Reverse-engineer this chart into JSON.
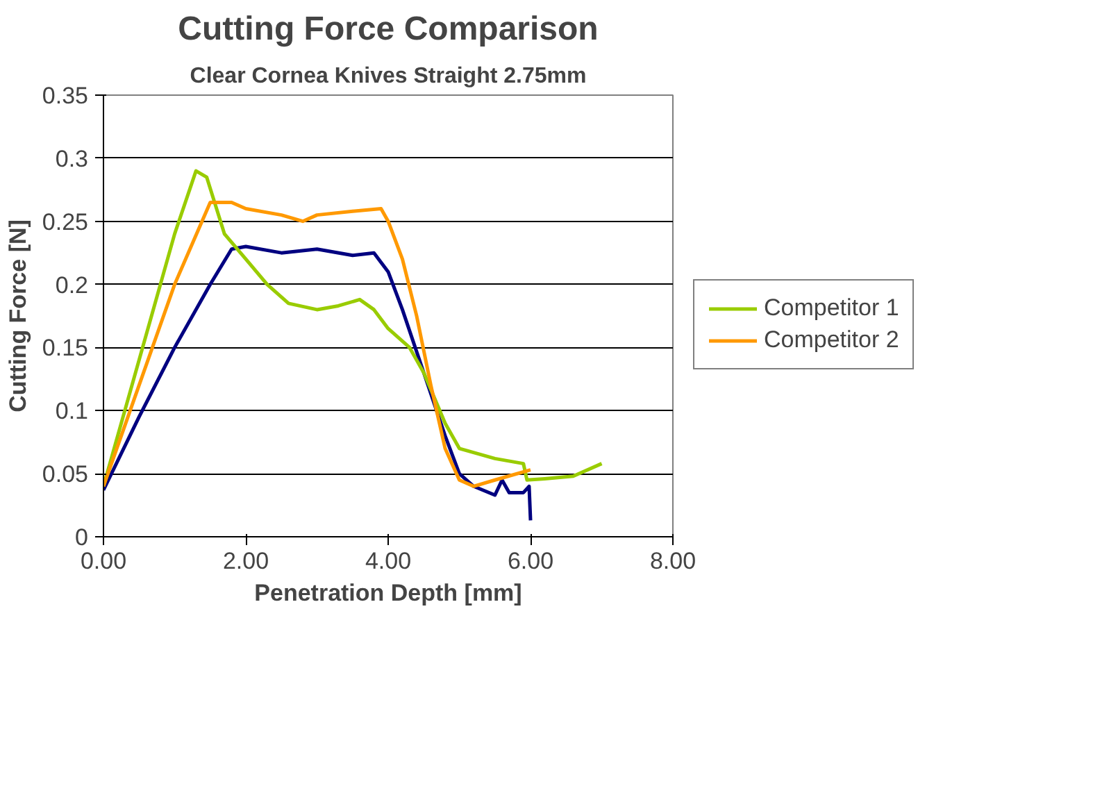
{
  "chart_data": {
    "type": "line",
    "title": "Cutting Force Comparison",
    "subtitle": "Clear Cornea Knives Straight 2.75mm",
    "xlabel": "Penetration Depth [mm]",
    "ylabel": "Cutting Force [N]",
    "xlim": [
      0,
      8
    ],
    "xticks": [
      {
        "value": 0,
        "label": "0.00"
      },
      {
        "value": 2,
        "label": "2.00"
      },
      {
        "value": 4,
        "label": "4.00"
      },
      {
        "value": 6,
        "label": "6.00"
      },
      {
        "value": 8,
        "label": "8.00"
      }
    ],
    "ylim": [
      0,
      0.35
    ],
    "yticks": [
      0,
      0.05,
      0.1,
      0.15,
      0.2,
      0.25,
      0.3,
      0.35
    ],
    "grid": "y",
    "legend": "right",
    "marker": "none",
    "line_style": "solid",
    "series": [
      {
        "color": "#000080",
        "x": [
          0,
          0.5,
          1.0,
          1.5,
          1.8,
          2.0,
          2.5,
          3.0,
          3.5,
          3.8,
          4.0,
          4.2,
          4.5,
          4.8,
          5.0,
          5.2,
          5.5,
          5.6,
          5.7,
          5.9,
          5.98,
          6.0
        ],
        "values": [
          0.037,
          0.095,
          0.15,
          0.2,
          0.228,
          0.23,
          0.225,
          0.228,
          0.223,
          0.225,
          0.21,
          0.18,
          0.13,
          0.08,
          0.05,
          0.04,
          0.033,
          0.045,
          0.035,
          0.035,
          0.04,
          0.013
        ]
      },
      {
        "name": "Competitor 1",
        "color": "#99cc00",
        "x": [
          0,
          0.5,
          1.0,
          1.3,
          1.45,
          1.7,
          2.0,
          2.3,
          2.6,
          3.0,
          3.3,
          3.6,
          3.8,
          4.0,
          4.3,
          4.5,
          4.8,
          5.0,
          5.5,
          5.9,
          5.95,
          6.2,
          6.6,
          7.0
        ],
        "values": [
          0.04,
          0.14,
          0.24,
          0.29,
          0.285,
          0.24,
          0.22,
          0.2,
          0.185,
          0.18,
          0.183,
          0.188,
          0.18,
          0.165,
          0.15,
          0.13,
          0.09,
          0.07,
          0.062,
          0.058,
          0.045,
          0.046,
          0.048,
          0.058
        ]
      },
      {
        "name": "Competitor 2",
        "color": "#ff9900",
        "x": [
          0,
          0.5,
          1.0,
          1.5,
          1.8,
          2.0,
          2.5,
          2.8,
          3.0,
          3.5,
          3.9,
          4.0,
          4.2,
          4.4,
          4.6,
          4.8,
          5.0,
          5.2,
          5.5,
          6.0
        ],
        "values": [
          0.04,
          0.12,
          0.2,
          0.265,
          0.265,
          0.26,
          0.255,
          0.25,
          0.255,
          0.258,
          0.26,
          0.25,
          0.22,
          0.175,
          0.12,
          0.07,
          0.045,
          0.04,
          0.045,
          0.053
        ]
      }
    ]
  }
}
